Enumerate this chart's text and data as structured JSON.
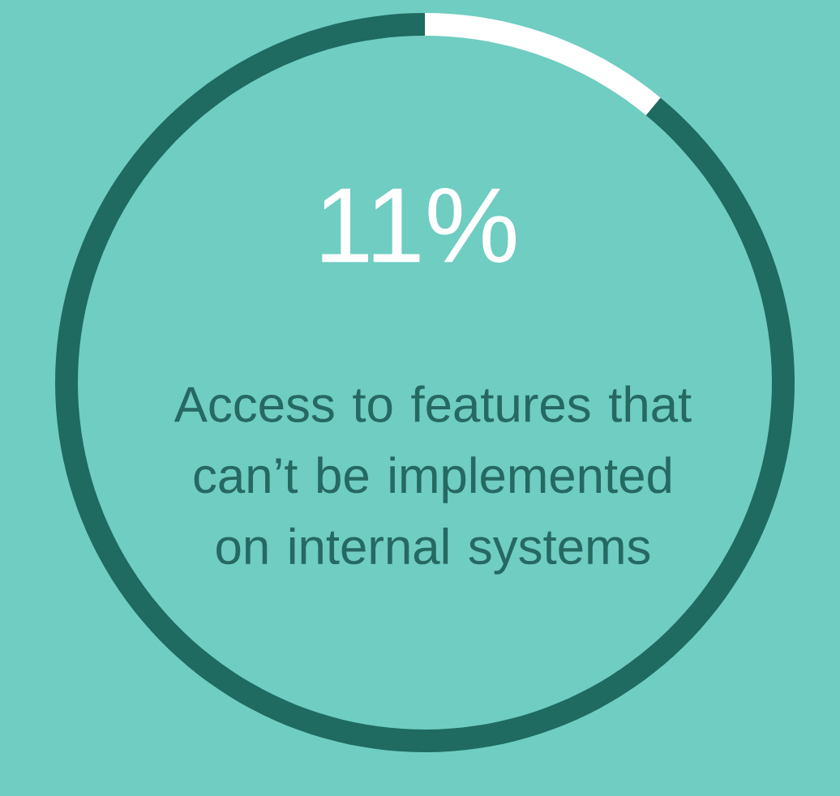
{
  "chart_data": {
    "type": "donut",
    "title": "Access to features that can’t be implemented on internal systems",
    "categories": [
      null,
      null
    ],
    "values": [
      11,
      89
    ],
    "colors": [
      "#ffffff",
      "#1f6a61"
    ],
    "value_labels": [
      "11%",
      null
    ]
  }
}
